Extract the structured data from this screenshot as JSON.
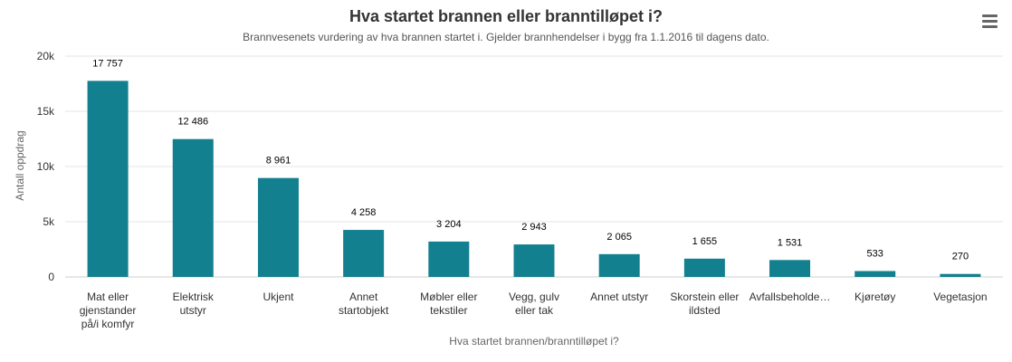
{
  "chart_data": {
    "type": "bar",
    "title": "Hva startet brannen eller branntilløpet i?",
    "subtitle": "Brannvesenets vurdering av hva brannen startet i. Gjelder brannhendelser i bygg fra 1.1.2016 til dagens dato.",
    "xlabel": "Hva startet brannen/branntilløpet i?",
    "ylabel": "Antall oppdrag",
    "ylim": [
      0,
      20000
    ],
    "yticks": [
      {
        "value": 0,
        "label": "0"
      },
      {
        "value": 5000,
        "label": "5k"
      },
      {
        "value": 10000,
        "label": "10k"
      },
      {
        "value": 15000,
        "label": "15k"
      },
      {
        "value": 20000,
        "label": "20k"
      }
    ],
    "categories": [
      [
        "Mat eller",
        "gjenstander",
        "på/i komfyr"
      ],
      [
        "Elektrisk",
        "utstyr"
      ],
      [
        "Ukjent"
      ],
      [
        "Annet",
        "startobjekt"
      ],
      [
        "Møbler eller",
        "tekstiler"
      ],
      [
        "Vegg, gulv",
        "eller tak"
      ],
      [
        "Annet utstyr"
      ],
      [
        "Skorstein eller",
        "ildsted"
      ],
      [
        "Avfallsbeholde…"
      ],
      [
        "Kjøretøy"
      ],
      [
        "Vegetasjon"
      ]
    ],
    "values": [
      17757,
      12486,
      8961,
      4258,
      3204,
      2943,
      2065,
      1655,
      1531,
      533,
      270
    ],
    "data_labels": [
      "17 757",
      "12 486",
      "8 961",
      "4 258",
      "3 204",
      "2 943",
      "2 065",
      "1 655",
      "1 531",
      "533",
      "270"
    ],
    "bar_color": "#13808f",
    "grid": true,
    "legend": "none"
  },
  "menu": {
    "icon": "hamburger-menu-icon"
  }
}
